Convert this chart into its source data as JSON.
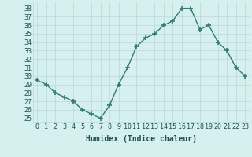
{
  "x": [
    0,
    1,
    2,
    3,
    4,
    5,
    6,
    7,
    8,
    9,
    10,
    11,
    12,
    13,
    14,
    15,
    16,
    17,
    18,
    19,
    20,
    21,
    22,
    23
  ],
  "y": [
    29.5,
    29,
    28,
    27.5,
    27,
    26,
    25.5,
    25,
    26.5,
    29,
    31,
    33.5,
    34.5,
    35,
    36,
    36.5,
    38,
    38,
    35.5,
    36,
    34,
    33,
    31,
    30
  ],
  "line_color": "#2e7d6e",
  "marker": "+",
  "markersize": 4,
  "markeredgewidth": 1.2,
  "linewidth": 1.0,
  "background_color": "#d6f0f0",
  "grid_color": "#b8d8d8",
  "xlabel": "Humidex (Indice chaleur)",
  "ylim": [
    24.5,
    38.8
  ],
  "xlim": [
    -0.5,
    23.5
  ],
  "yticks": [
    25,
    26,
    27,
    28,
    29,
    30,
    31,
    32,
    33,
    34,
    35,
    36,
    37,
    38
  ],
  "xticks": [
    0,
    1,
    2,
    3,
    4,
    5,
    6,
    7,
    8,
    9,
    10,
    11,
    12,
    13,
    14,
    15,
    16,
    17,
    18,
    19,
    20,
    21,
    22,
    23
  ],
  "xlabel_fontsize": 7,
  "tick_fontsize": 6,
  "label_color": "#1a5050"
}
